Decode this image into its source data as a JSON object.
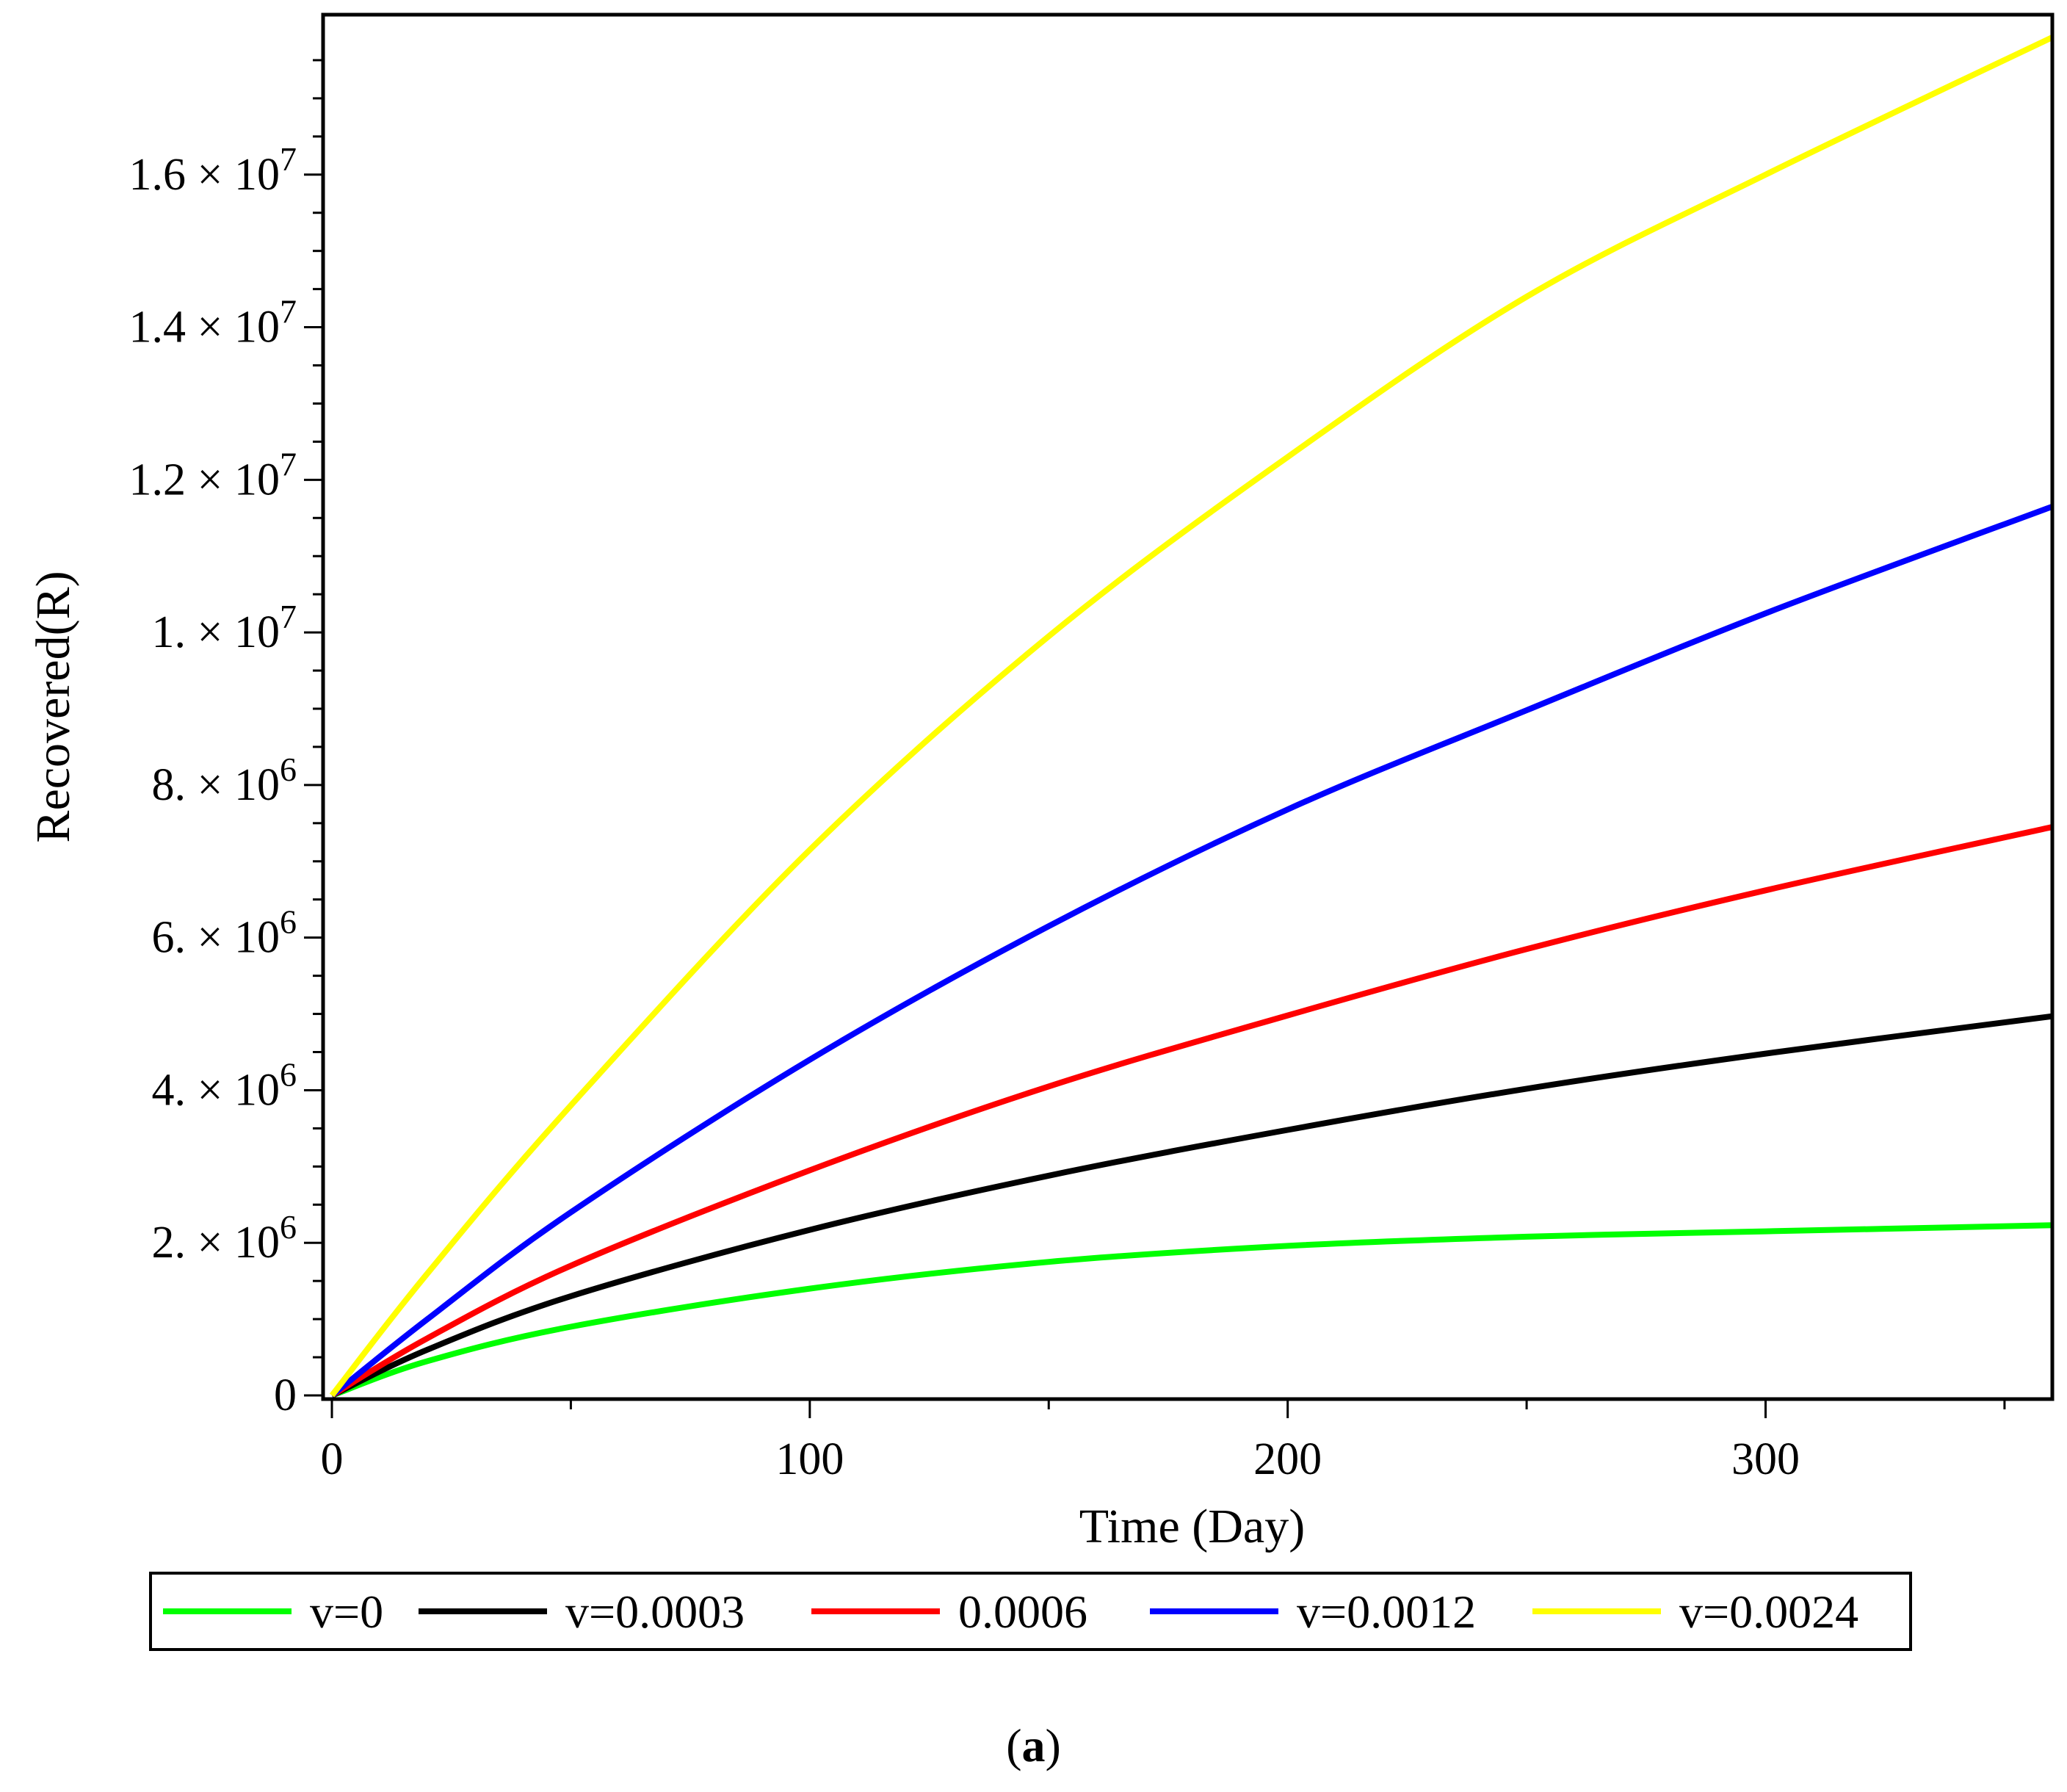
{
  "chart_data": {
    "type": "line",
    "title": "",
    "xlabel": "Time (Day)",
    "ylabel": "Recovered(R)",
    "xlim": [
      0,
      360
    ],
    "ylim": [
      0,
      18000000
    ],
    "x_ticks": [
      {
        "value": 0,
        "label": "0"
      },
      {
        "value": 100,
        "label": "100"
      },
      {
        "value": 200,
        "label": "200"
      },
      {
        "value": 300,
        "label": "300"
      }
    ],
    "y_ticks": [
      {
        "value": 0,
        "label": "0",
        "mantissa": "0",
        "exponent": ""
      },
      {
        "value": 2000000,
        "label": "2. × 10^6",
        "mantissa": "2. × 10",
        "exponent": "6"
      },
      {
        "value": 4000000,
        "label": "4. × 10^6",
        "mantissa": "4. × 10",
        "exponent": "6"
      },
      {
        "value": 6000000,
        "label": "6. × 10^6",
        "mantissa": "6. × 10",
        "exponent": "6"
      },
      {
        "value": 8000000,
        "label": "8. × 10^6",
        "mantissa": "8. × 10",
        "exponent": "6"
      },
      {
        "value": 10000000,
        "label": "1. × 10^7",
        "mantissa": "1. × 10",
        "exponent": "7"
      },
      {
        "value": 12000000,
        "label": "1.2 × 10^7",
        "mantissa": "1.2 × 10",
        "exponent": "7"
      },
      {
        "value": 14000000,
        "label": "1.4 × 10^7",
        "mantissa": "1.4 × 10",
        "exponent": "7"
      },
      {
        "value": 16000000,
        "label": "1.6 × 10^7",
        "mantissa": "1.6 × 10",
        "exponent": "7"
      }
    ],
    "legend_position": "bottom",
    "series": [
      {
        "name": "v=0",
        "color": "#00ff00",
        "x": [
          0,
          20,
          50,
          100,
          150,
          200,
          250,
          300,
          360
        ],
        "values": [
          0,
          450000,
          900000,
          1400000,
          1750000,
          1960000,
          2080000,
          2150000,
          2230000
        ]
      },
      {
        "name": "v=0.0003",
        "color": "#000000",
        "x": [
          0,
          20,
          50,
          100,
          150,
          200,
          250,
          300,
          360
        ],
        "values": [
          0,
          600000,
          1300000,
          2170000,
          2880000,
          3480000,
          4020000,
          4480000,
          4970000
        ]
      },
      {
        "name": "0.0006",
        "color": "#ff0000",
        "x": [
          0,
          20,
          50,
          100,
          150,
          200,
          250,
          300,
          360
        ],
        "values": [
          0,
          750000,
          1700000,
          2950000,
          4050000,
          4980000,
          5850000,
          6620000,
          7450000
        ]
      },
      {
        "name": "v=0.0012",
        "color": "#0000ff",
        "x": [
          0,
          20,
          50,
          100,
          150,
          200,
          250,
          300,
          360
        ],
        "values": [
          0,
          1000000,
          2400000,
          4400000,
          6150000,
          7680000,
          8980000,
          10250000,
          11650000
        ]
      },
      {
        "name": "v=0.0024",
        "color": "#ffff00",
        "x": [
          0,
          20,
          50,
          100,
          150,
          200,
          250,
          300,
          360
        ],
        "values": [
          0,
          1600000,
          3800000,
          7150000,
          9950000,
          12300000,
          14400000,
          16000000,
          17800000
        ]
      }
    ]
  },
  "caption": {
    "open": "(",
    "label": "a",
    "close": ")"
  }
}
